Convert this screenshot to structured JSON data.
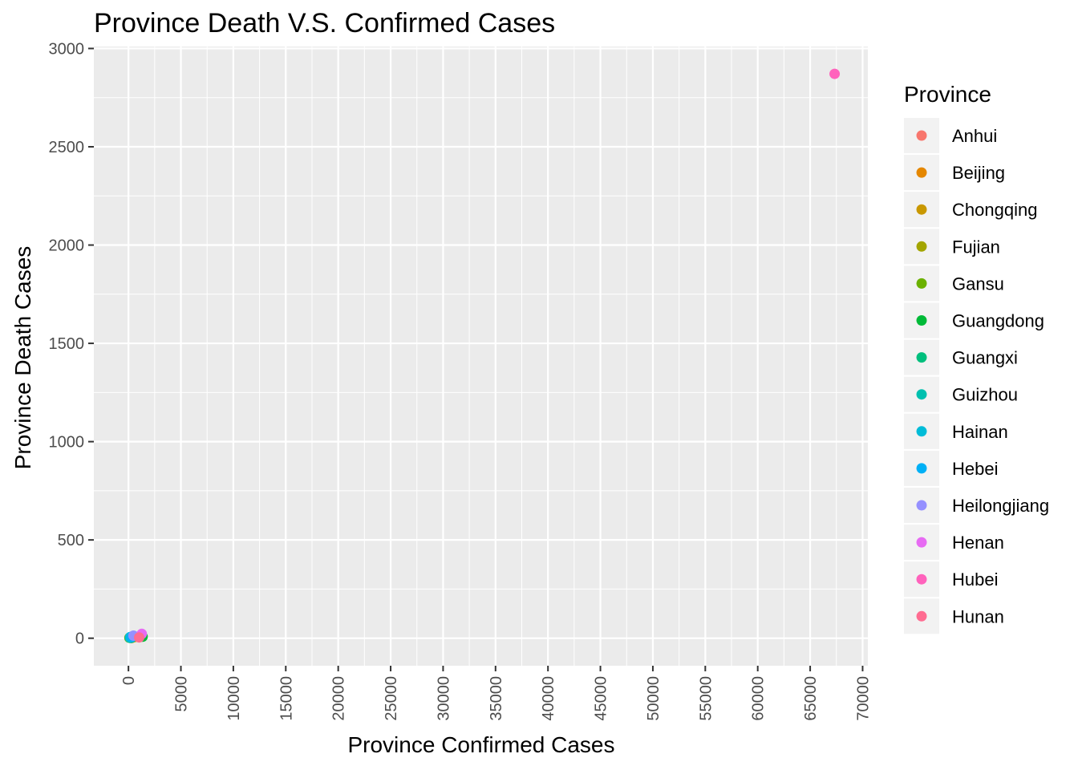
{
  "chart_data": {
    "type": "scatter",
    "title": "Province Death V.S. Confirmed Cases",
    "xlabel": "Province Confirmed Cases",
    "ylabel": "Province Death Cases",
    "xlim": [
      -3300,
      70500
    ],
    "ylim": [
      -140,
      3010
    ],
    "x_ticks": [
      0,
      5000,
      10000,
      15000,
      20000,
      25000,
      30000,
      35000,
      40000,
      45000,
      50000,
      55000,
      60000,
      65000,
      70000
    ],
    "x_tick_labels": [
      "0",
      "5000",
      "10000",
      "15000",
      "20000",
      "25000",
      "30000",
      "35000",
      "40000",
      "45000",
      "50000",
      "55000",
      "60000",
      "65000",
      "70000"
    ],
    "y_ticks": [
      0,
      500,
      1000,
      1500,
      2000,
      2500,
      3000
    ],
    "y_tick_labels": [
      "0",
      "500",
      "1000",
      "1500",
      "2000",
      "2500",
      "3000"
    ],
    "grid": true,
    "legend": {
      "title": "Province",
      "placement": "right"
    },
    "series": [
      {
        "name": "Anhui",
        "color": "#F8766D",
        "points": [
          [
            990,
            6
          ]
        ]
      },
      {
        "name": "Beijing",
        "color": "#E58700",
        "points": [
          [
            400,
            8
          ]
        ]
      },
      {
        "name": "Chongqing",
        "color": "#C99800",
        "points": [
          [
            576,
            6
          ]
        ]
      },
      {
        "name": "Fujian",
        "color": "#A3A500",
        "points": [
          [
            296,
            1
          ]
        ]
      },
      {
        "name": "Gansu",
        "color": "#6BB100",
        "points": [
          [
            91,
            2
          ]
        ]
      },
      {
        "name": "Guangdong",
        "color": "#00BA38",
        "points": [
          [
            1350,
            8
          ]
        ]
      },
      {
        "name": "Guangxi",
        "color": "#00BF7D",
        "points": [
          [
            252,
            2
          ]
        ]
      },
      {
        "name": "Guizhou",
        "color": "#00C0AF",
        "points": [
          [
            146,
            2
          ]
        ]
      },
      {
        "name": "Hainan",
        "color": "#00BCD8",
        "points": [
          [
            168,
            6
          ]
        ]
      },
      {
        "name": "Hebei",
        "color": "#00B0F6",
        "points": [
          [
            318,
            6
          ]
        ]
      },
      {
        "name": "Heilongjiang",
        "color": "#9590FF",
        "points": [
          [
            480,
            13
          ]
        ]
      },
      {
        "name": "Henan",
        "color": "#E76BF3",
        "points": [
          [
            1272,
            22
          ]
        ]
      },
      {
        "name": "Hubei",
        "color": "#FF62BC",
        "points": [
          [
            67332,
            2871
          ]
        ]
      },
      {
        "name": "Hunan",
        "color": "#FF6C91",
        "points": [
          [
            1018,
            4
          ]
        ]
      }
    ]
  }
}
